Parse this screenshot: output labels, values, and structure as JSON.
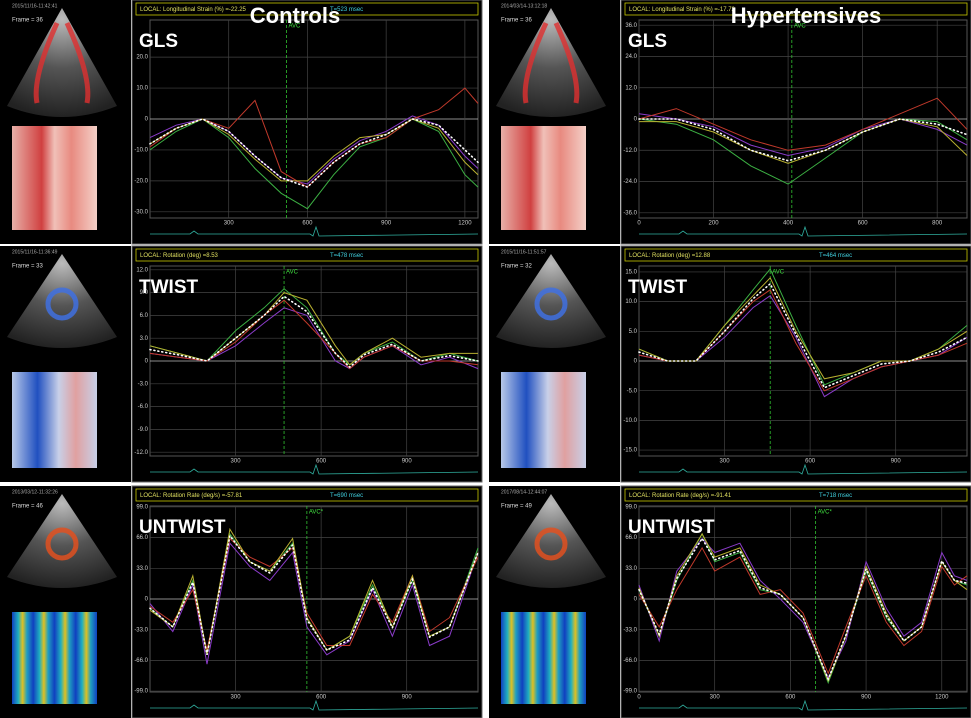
{
  "headings": {
    "left": "Controls",
    "right": "Hypertensives"
  },
  "chart_data": [
    {
      "type": "line",
      "label": "GLS",
      "header": "LOCAL: Longitudinal Strain (%) =-22.25",
      "time": "T=523 msec",
      "timestamp": "2015/11/16-11:42:41",
      "frame": "Frame = 36",
      "annotation": {
        "text": "AVC",
        "x": 520
      },
      "xlim": [
        0,
        1250
      ],
      "ylim": [
        -32,
        32
      ],
      "xticks": [
        300,
        600,
        900,
        1200
      ],
      "yticks": [
        {
          "value": 20,
          "label": "20.0"
        },
        {
          "value": 10,
          "label": "10.0"
        },
        0,
        {
          "value": -10,
          "label": "-10.0"
        },
        {
          "value": -20,
          "label": "-20.0"
        },
        {
          "value": -30,
          "label": "-30.0"
        }
      ],
      "x": [
        0,
        100,
        200,
        300,
        400,
        500,
        600,
        700,
        800,
        900,
        1000,
        1100,
        1200,
        1250
      ],
      "series": [
        {
          "color": "#3cb043",
          "values": [
            -10,
            -4,
            0,
            -6,
            -16,
            -24,
            -29,
            -18,
            -9,
            -6,
            0,
            -4,
            -18,
            -22
          ]
        },
        {
          "color": "#8a3bc9",
          "values": [
            -6,
            -2,
            0,
            -4,
            -12,
            -19,
            -21,
            -13,
            -7,
            -4,
            1,
            -2,
            -12,
            -16
          ]
        },
        {
          "color": "#c0392b",
          "values": [
            -9,
            -3,
            0,
            -3,
            6,
            -17,
            -22,
            -14,
            -8,
            -6,
            0,
            3,
            10,
            5
          ]
        },
        {
          "color": "#b8b030",
          "values": [
            -8,
            -3,
            0,
            -5,
            -13,
            -20,
            -20,
            -12,
            -6,
            -5,
            0,
            -3,
            -14,
            -18
          ]
        },
        {
          "color": "#ffffff",
          "dashed": true,
          "values": [
            -8,
            -3,
            0,
            -4,
            -12,
            -19,
            -22,
            -14,
            -8,
            -5,
            0,
            -2,
            -10,
            -14
          ]
        }
      ]
    },
    {
      "type": "line",
      "label": "GLS",
      "header": "LOCAL: Longitudinal Strain (%) =-17.72",
      "timestamp": "2014/03/14-13:12:18",
      "frame": "Frame = 36",
      "annotation": {
        "text": "AVC",
        "x": 410
      },
      "xlim": [
        0,
        880
      ],
      "ylim": [
        -38,
        38
      ],
      "xticks": [
        0,
        200,
        400,
        600,
        800
      ],
      "yticks": [
        {
          "value": 36,
          "label": "36.0"
        },
        {
          "value": 24,
          "label": "24.0"
        },
        {
          "value": 12,
          "label": "12.0"
        },
        0,
        {
          "value": -12,
          "label": "-12.0"
        },
        {
          "value": -24,
          "label": "-24.0"
        },
        {
          "value": -36,
          "label": "-36.0"
        }
      ],
      "x": [
        0,
        100,
        200,
        300,
        400,
        500,
        600,
        700,
        800,
        880
      ],
      "series": [
        {
          "color": "#3cb043",
          "values": [
            0,
            -2,
            -8,
            -18,
            -25,
            -15,
            -5,
            0,
            -1,
            -8
          ]
        },
        {
          "color": "#8a3bc9",
          "values": [
            2,
            0,
            -3,
            -10,
            -14,
            -11,
            -4,
            0,
            -4,
            -10
          ]
        },
        {
          "color": "#c0392b",
          "values": [
            0,
            4,
            -2,
            -8,
            -12,
            -10,
            -4,
            2,
            8,
            -4
          ]
        },
        {
          "color": "#b8b030",
          "values": [
            -1,
            -1,
            -5,
            -12,
            -17,
            -12,
            -5,
            0,
            -3,
            -14
          ]
        },
        {
          "color": "#ffffff",
          "dashed": true,
          "values": [
            0,
            0,
            -4,
            -12,
            -16,
            -12,
            -5,
            0,
            -2,
            -6
          ]
        }
      ]
    },
    {
      "type": "line",
      "label": "TWIST",
      "header": "LOCAL: Rotation (deg) =8.53",
      "time": "T=478 msec",
      "timestamp": "2015/11/16-11:36:49",
      "frame": "Frame = 33",
      "annotation": {
        "text": "AVC",
        "x": 470
      },
      "xlim": [
        0,
        1150
      ],
      "ylim": [
        -12.5,
        12.5
      ],
      "xticks": [
        300,
        600,
        900
      ],
      "yticks": [
        {
          "value": 12,
          "label": "12.0"
        },
        {
          "value": 9,
          "label": "9.0"
        },
        {
          "value": 6,
          "label": "6.0"
        },
        {
          "value": 3,
          "label": "3.0"
        },
        0,
        {
          "value": -3,
          "label": "-3.0"
        },
        {
          "value": -6,
          "label": "-6.0"
        },
        {
          "value": -9,
          "label": "-9.0"
        },
        {
          "value": -12,
          "label": "-12.0"
        }
      ],
      "x": [
        0,
        100,
        200,
        300,
        400,
        470,
        550,
        650,
        700,
        750,
        850,
        950,
        1050,
        1150
      ],
      "series": [
        {
          "color": "#3cb043",
          "values": [
            2,
            1,
            0,
            4,
            7,
            9.5,
            7,
            1,
            -0.5,
            1,
            2.5,
            0,
            1,
            0
          ]
        },
        {
          "color": "#8a3bc9",
          "values": [
            1,
            0.5,
            0,
            2,
            5,
            7,
            6,
            0,
            -1,
            0.5,
            2,
            -0.5,
            0.5,
            -1
          ]
        },
        {
          "color": "#b8b030",
          "values": [
            2,
            1,
            0,
            3,
            6,
            9,
            8,
            2,
            -0.5,
            1,
            3,
            0.5,
            1,
            1
          ]
        },
        {
          "color": "#c0392b",
          "values": [
            1,
            0.5,
            0,
            2.5,
            6,
            8,
            5,
            1,
            -1,
            0.5,
            2,
            0,
            0,
            -0.5
          ]
        },
        {
          "color": "#ffffff",
          "dashed": true,
          "values": [
            1.5,
            0.8,
            0,
            3,
            6,
            8.5,
            6.5,
            1,
            -0.8,
            0.8,
            2.2,
            0,
            0.7,
            0
          ]
        }
      ]
    },
    {
      "type": "line",
      "label": "TWIST",
      "header": "LOCAL: Rotation (deg) =12.88",
      "time": "T=464 msec",
      "timestamp": "2015/11/16-11:51:57",
      "frame": "Frame = 32",
      "annotation": {
        "text": "AVC",
        "x": 460
      },
      "xlim": [
        0,
        1150
      ],
      "ylim": [
        -16,
        16
      ],
      "xticks": [
        300,
        600,
        900
      ],
      "yticks": [
        {
          "value": 15,
          "label": "15.0"
        },
        {
          "value": 10,
          "label": "10.0"
        },
        {
          "value": 5,
          "label": "5.0"
        },
        0,
        {
          "value": -5,
          "label": "-5.0"
        },
        {
          "value": -10,
          "label": "-10.0"
        },
        {
          "value": -15,
          "label": "-15.0"
        }
      ],
      "x": [
        0,
        100,
        200,
        300,
        400,
        460,
        550,
        650,
        750,
        850,
        950,
        1050,
        1150
      ],
      "series": [
        {
          "color": "#3cb043",
          "values": [
            2,
            0,
            0,
            6,
            12,
            15.5,
            6,
            -4,
            -2,
            0,
            0,
            2,
            6
          ]
        },
        {
          "color": "#8a3bc9",
          "values": [
            1,
            0,
            0,
            4,
            9,
            11,
            4,
            -6,
            -3,
            -1,
            0,
            1,
            4
          ]
        },
        {
          "color": "#c0392b",
          "values": [
            1,
            0,
            0,
            5,
            10,
            12,
            3,
            -5,
            -3,
            -1,
            0,
            1,
            3
          ]
        },
        {
          "color": "#b8b030",
          "values": [
            2,
            0,
            0,
            6,
            11,
            14,
            5,
            -3,
            -2,
            0,
            0,
            2,
            5
          ]
        },
        {
          "color": "#ffffff",
          "dashed": true,
          "values": [
            1.5,
            0,
            0,
            5,
            10.5,
            13,
            4.5,
            -4.5,
            -2.5,
            -0.5,
            0,
            1.5,
            4
          ]
        }
      ]
    },
    {
      "type": "line",
      "label": "UNTWIST",
      "header": "LOCAL: Rotation Rate (deg/s) =-57.81",
      "time": "T=690 msec",
      "timestamp": "2013/03/12-11:32:26",
      "frame": "Frame = 46",
      "annotation": {
        "text": "AVC*",
        "x": 550
      },
      "xlim": [
        0,
        1150
      ],
      "ylim": [
        -100,
        100
      ],
      "xticks": [
        300,
        600,
        900
      ],
      "yticks": [
        {
          "value": 99,
          "label": "99.0"
        },
        {
          "value": 66,
          "label": "66.0"
        },
        {
          "value": 33,
          "label": "33.0"
        },
        0,
        {
          "value": -33,
          "label": "-33.0"
        },
        {
          "value": -66,
          "label": "-66.0"
        },
        {
          "value": -99,
          "label": "-99.0"
        }
      ],
      "x": [
        0,
        80,
        150,
        200,
        280,
        350,
        420,
        500,
        550,
        620,
        700,
        780,
        850,
        920,
        980,
        1050,
        1150
      ],
      "series": [
        {
          "color": "#3cb043",
          "values": [
            -10,
            -30,
            20,
            -60,
            70,
            40,
            30,
            60,
            -20,
            -55,
            -40,
            15,
            -30,
            20,
            -40,
            -30,
            55
          ]
        },
        {
          "color": "#8a3bc9",
          "values": [
            -5,
            -35,
            15,
            -70,
            60,
            35,
            20,
            50,
            -30,
            -60,
            -45,
            10,
            -40,
            15,
            -50,
            -40,
            50
          ]
        },
        {
          "color": "#c0392b",
          "values": [
            -8,
            -25,
            10,
            -55,
            65,
            45,
            35,
            55,
            -15,
            -50,
            -50,
            5,
            -25,
            25,
            -35,
            -20,
            45
          ]
        },
        {
          "color": "#b8b030",
          "values": [
            -12,
            -30,
            25,
            -60,
            75,
            40,
            30,
            65,
            -20,
            -55,
            -40,
            20,
            -30,
            25,
            -40,
            -30,
            50
          ]
        },
        {
          "color": "#ffffff",
          "dashed": true,
          "values": [
            -10,
            -30,
            18,
            -60,
            68,
            40,
            28,
            58,
            -22,
            -55,
            -44,
            12,
            -31,
            21,
            -41,
            -30,
            50
          ]
        }
      ]
    },
    {
      "type": "line",
      "label": "UNTWIST",
      "header": "LOCAL: Rotation Rate (deg/s) =-91.41",
      "time": "T=718 msec",
      "timestamp": "2017/08/14-12:44:07",
      "frame": "Frame = 49",
      "annotation": {
        "text": "AVC*",
        "x": 700
      },
      "xlim": [
        0,
        1300
      ],
      "ylim": [
        -100,
        100
      ],
      "xticks": [
        0,
        300,
        600,
        900,
        1200
      ],
      "yticks": [
        {
          "value": 99,
          "label": "99.0"
        },
        {
          "value": 66,
          "label": "66.0"
        },
        {
          "value": 33,
          "label": "33.0"
        },
        0,
        {
          "value": -33,
          "label": "-33.0"
        },
        {
          "value": -66,
          "label": "-66.0"
        },
        {
          "value": -99,
          "label": "-99.0"
        }
      ],
      "x": [
        0,
        80,
        150,
        250,
        300,
        400,
        480,
        560,
        650,
        750,
        820,
        900,
        980,
        1050,
        1120,
        1200,
        1250,
        1300
      ],
      "series": [
        {
          "color": "#3cb043",
          "values": [
            10,
            -40,
            20,
            70,
            40,
            50,
            10,
            5,
            -20,
            -90,
            -40,
            30,
            -20,
            -45,
            -30,
            40,
            20,
            15
          ]
        },
        {
          "color": "#8a3bc9",
          "values": [
            15,
            -45,
            30,
            65,
            50,
            60,
            20,
            0,
            -25,
            -85,
            -45,
            40,
            -10,
            -40,
            -25,
            50,
            25,
            20
          ]
        },
        {
          "color": "#c0392b",
          "values": [
            5,
            -30,
            10,
            55,
            30,
            45,
            5,
            10,
            -15,
            -80,
            -30,
            25,
            -25,
            -50,
            -35,
            35,
            15,
            25
          ]
        },
        {
          "color": "#b8b030",
          "values": [
            12,
            -40,
            25,
            70,
            45,
            55,
            15,
            5,
            -20,
            -88,
            -40,
            35,
            -15,
            -45,
            -30,
            40,
            20,
            10
          ]
        },
        {
          "color": "#ffffff",
          "dashed": true,
          "values": [
            10,
            -38,
            22,
            65,
            42,
            52,
            12,
            5,
            -20,
            -86,
            -39,
            32,
            -18,
            -45,
            -30,
            41,
            20,
            17
          ]
        }
      ]
    }
  ]
}
